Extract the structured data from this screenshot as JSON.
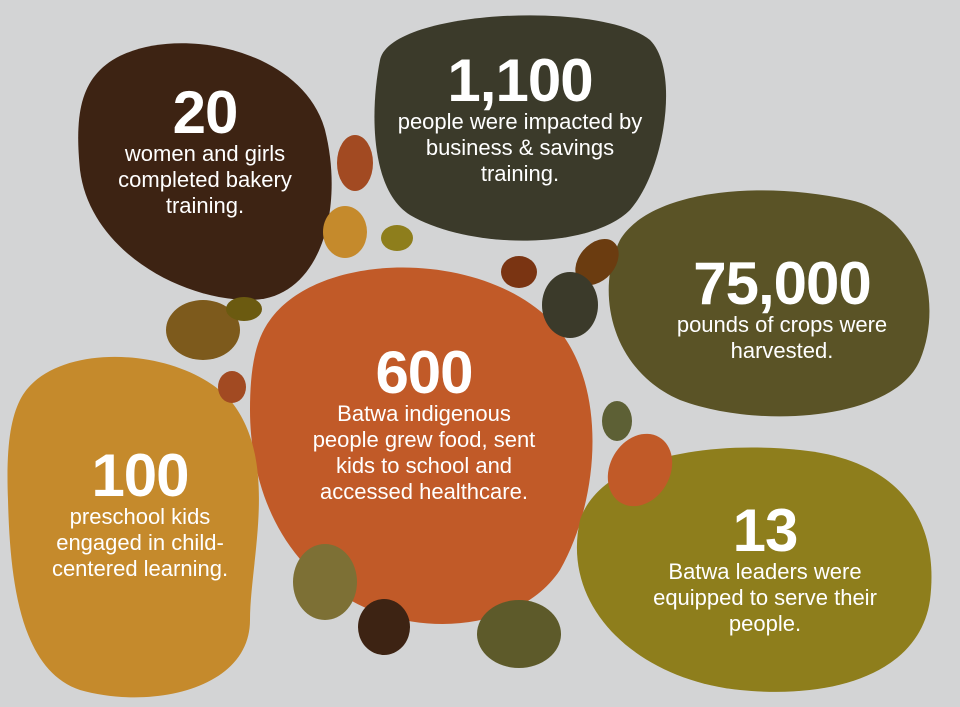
{
  "stats": [
    {
      "number": "20",
      "text": "women and girls completed bakery training."
    },
    {
      "number": "1,100",
      "text": "people were impacted by business & savings training."
    },
    {
      "number": "75,000",
      "text": "pounds of crops were harvested."
    },
    {
      "number": "600",
      "text": "Batwa indigenous people grew food, sent kids to school and accessed healthcare."
    },
    {
      "number": "100",
      "text": "preschool kids engaged in child-centered learning."
    },
    {
      "number": "13",
      "text": "Batwa leaders were equipped to serve their people."
    }
  ]
}
